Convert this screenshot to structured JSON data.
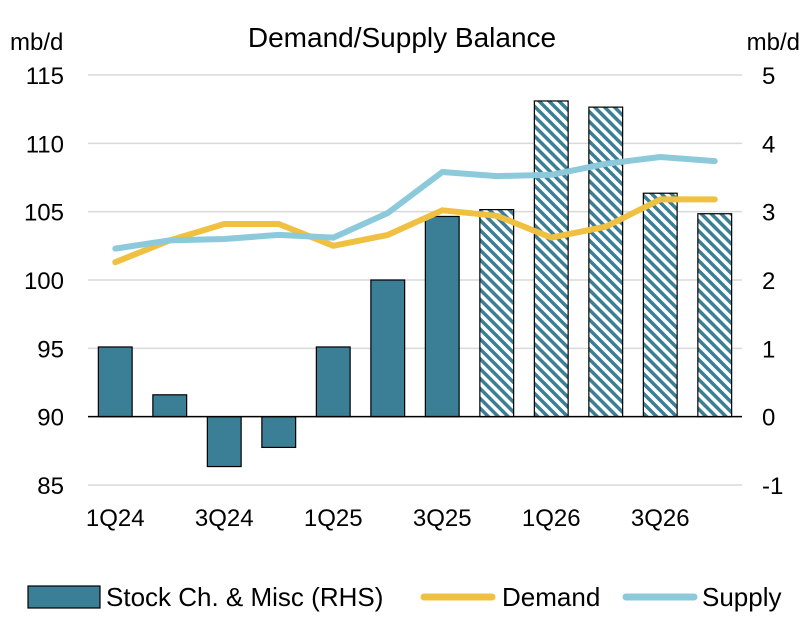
{
  "chart_data": {
    "type": "bar+line",
    "title": "Demand/Supply Balance",
    "left_axis_unit": "mb/d",
    "right_axis_unit": "mb/d",
    "left_ylim": [
      85,
      115
    ],
    "left_ticks": [
      85,
      90,
      95,
      100,
      105,
      110,
      115
    ],
    "right_ylim": [
      -1,
      5
    ],
    "right_ticks": [
      -1,
      0,
      1,
      2,
      3,
      4,
      5
    ],
    "categories": [
      "1Q24",
      "2Q24",
      "3Q24",
      "4Q24",
      "1Q25",
      "2Q25",
      "3Q25",
      "4Q25",
      "1Q26",
      "2Q26",
      "3Q26",
      "4Q26"
    ],
    "x_tick_labels": [
      "1Q24",
      "3Q24",
      "1Q25",
      "3Q25",
      "1Q26",
      "3Q26"
    ],
    "forecast_start_index": 7,
    "grid": true,
    "legend_position": "bottom",
    "series": [
      {
        "name": "Stock Ch. & Misc (RHS)",
        "kind": "bar",
        "axis": "right",
        "color": "#3a7f96",
        "values": [
          1.02,
          0.32,
          -0.73,
          -0.45,
          1.02,
          2.0,
          2.93,
          3.03,
          4.62,
          4.53,
          3.27,
          2.97
        ]
      },
      {
        "name": "Demand",
        "kind": "line",
        "axis": "left",
        "color": "#f0c040",
        "values": [
          101.3,
          102.9,
          104.1,
          104.1,
          102.5,
          103.3,
          105.1,
          104.7,
          103.1,
          103.9,
          105.9,
          105.9
        ]
      },
      {
        "name": "Supply",
        "kind": "line",
        "axis": "left",
        "color": "#8ccadb",
        "values": [
          102.3,
          102.9,
          103.0,
          103.3,
          103.1,
          104.9,
          107.9,
          107.6,
          107.7,
          108.5,
          109.0,
          108.7
        ]
      }
    ]
  }
}
